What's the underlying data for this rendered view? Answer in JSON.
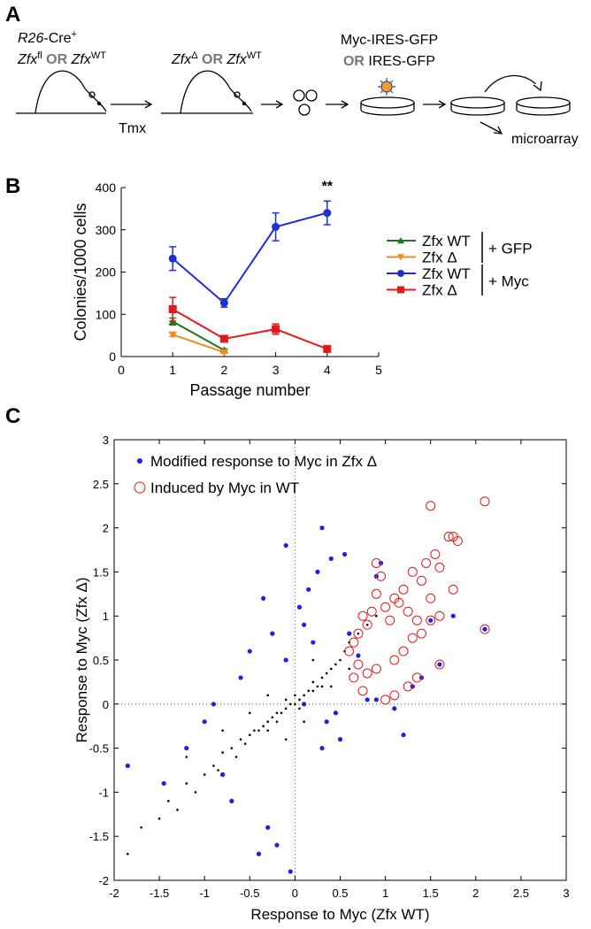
{
  "panel_labels": [
    "A",
    "B",
    "C"
  ],
  "diagram": {
    "start_line1": [
      "R26",
      "-Cre",
      "+"
    ],
    "start_line2": [
      "Zfx",
      "fl",
      " OR ",
      "Zfx",
      "WT"
    ],
    "deleted_line": [
      "Zfx",
      "Δ",
      " OR ",
      "Zfx",
      "WT"
    ],
    "treatment": "Tmx",
    "virus_line1": "Myc-IRES-GFP",
    "virus_line2": [
      "OR",
      " IRES-GFP"
    ],
    "readout": "microarray"
  },
  "chart_data": [
    {
      "type": "line",
      "xlabel": "Passage number",
      "ylabel": "Colonies/1000 cells",
      "xlim": [
        0,
        5
      ],
      "xticks": [
        0,
        1,
        2,
        3,
        4,
        5
      ],
      "ylim": [
        0,
        400
      ],
      "yticks": [
        0,
        100,
        200,
        300,
        400
      ],
      "annotation": "**",
      "legend_groups": [
        "+ GFP",
        "+ Myc"
      ],
      "series": [
        {
          "name": "Zfx WT",
          "color": "#1a7a1a",
          "marker": "triangle-up",
          "x": [
            1,
            2
          ],
          "values": [
            83,
            15
          ],
          "errors": [
            8,
            3
          ]
        },
        {
          "name": "Zfx Δ",
          "color": "#f08c1e",
          "marker": "triangle-down",
          "x": [
            1,
            2
          ],
          "values": [
            52,
            10
          ],
          "errors": [
            4,
            2
          ]
        },
        {
          "name": "Zfx WT",
          "color": "#1f2fd6",
          "marker": "circle",
          "x": [
            1,
            2,
            3,
            4
          ],
          "values": [
            232,
            127,
            307,
            340
          ],
          "errors": [
            28,
            10,
            33,
            28
          ]
        },
        {
          "name": "Zfx Δ",
          "color": "#e41a1a",
          "marker": "square",
          "x": [
            1,
            2,
            3,
            4
          ],
          "values": [
            112,
            42,
            65,
            18
          ],
          "errors": [
            28,
            5,
            12,
            3
          ]
        }
      ]
    },
    {
      "type": "scatter",
      "xlabel": "Response to Myc (Zfx WT)",
      "ylabel": "Response to Myc (Zfx Δ)",
      "xlim": [
        -2,
        3
      ],
      "xticks": [
        -2,
        -1.5,
        -1,
        -0.5,
        0,
        0.5,
        1,
        1.5,
        2,
        2.5,
        3
      ],
      "ylim": [
        -2,
        3
      ],
      "yticks": [
        -2,
        -1.5,
        -1,
        -0.5,
        0,
        0.5,
        1,
        1.5,
        2,
        2.5,
        3
      ],
      "zero_lines": true,
      "series": [
        {
          "color": "#000000",
          "marker": "point",
          "x": [
            -1.85,
            -1.7,
            -1.5,
            -1.4,
            -1.3,
            -1.2,
            -1.1,
            -1.0,
            -0.9,
            -0.85,
            -0.8,
            -0.7,
            -0.65,
            -0.6,
            -0.55,
            -0.5,
            -0.45,
            -0.4,
            -0.35,
            -0.3,
            -0.3,
            -0.25,
            -0.2,
            -0.2,
            -0.15,
            -0.1,
            -0.1,
            -0.05,
            0,
            0,
            0.05,
            0.05,
            0.1,
            0.1,
            0.15,
            0.2,
            0.2,
            0.25,
            0.3,
            0.3,
            0.35,
            0.4,
            0.45,
            0.5,
            0.55,
            0.6,
            0.7,
            0.8,
            0.9,
            -0.5,
            -0.8,
            -1.2,
            0.4,
            0.1,
            -0.3,
            0.6,
            -0.1,
            0.2
          ],
          "values": [
            -1.7,
            -1.4,
            -1.3,
            -1.1,
            -1.2,
            -0.9,
            -1.0,
            -0.8,
            -0.7,
            -0.75,
            -0.55,
            -0.5,
            -0.6,
            -0.4,
            -0.45,
            -0.35,
            -0.3,
            -0.3,
            -0.25,
            -0.2,
            -0.3,
            -0.15,
            -0.1,
            -0.2,
            -0.1,
            -0.05,
            0.05,
            0,
            0,
            0.1,
            0.05,
            -0.05,
            0.1,
            0,
            0.15,
            0.15,
            0.25,
            0.2,
            0.3,
            0.2,
            0.35,
            0.4,
            0.45,
            0.5,
            0.6,
            0.7,
            0.8,
            0.9,
            1.0,
            -0.1,
            -0.3,
            -0.6,
            0.2,
            -0.2,
            0.1,
            0.4,
            -0.4,
            0.5
          ]
        },
        {
          "name": "Modified response to Myc in Zfx Δ",
          "color": "#1f1fe6",
          "marker": "filled",
          "x": [
            0.3,
            -0.1,
            0.15,
            0.05,
            0.25,
            -0.35,
            0.55,
            0.4,
            0.1,
            -0.25,
            -0.5,
            -0.6,
            -0.9,
            -1.0,
            -1.2,
            -1.45,
            -1.85,
            -0.7,
            -0.3,
            -0.2,
            0.3,
            0.5,
            0.6,
            0.2,
            -0.1,
            0.35,
            0.45,
            0.7,
            0.8,
            0.9,
            1.1,
            1.2,
            1.3,
            1.5,
            1.6,
            1.75,
            2.1,
            1.4,
            0.95,
            0.9,
            -0.05,
            -0.4,
            -0.8,
            0.1
          ],
          "values": [
            2.0,
            1.8,
            1.3,
            1.1,
            1.5,
            1.2,
            1.7,
            1.65,
            0.9,
            0.8,
            0.6,
            0.3,
            0.0,
            -0.2,
            -0.5,
            -0.9,
            -0.7,
            -1.1,
            -1.4,
            -1.6,
            -0.5,
            -0.4,
            0.8,
            0.7,
            0.5,
            -0.2,
            -0.1,
            0.55,
            0.05,
            0.05,
            -0.05,
            -0.35,
            0.2,
            0.95,
            0.45,
            1.0,
            0.85,
            0.3,
            1.6,
            1.45,
            -1.9,
            -1.7,
            -0.8,
            0.0
          ]
        },
        {
          "name": "Induced by Myc in WT",
          "color": "#e41a1a",
          "marker": "open",
          "x": [
            1.5,
            2.1,
            1.75,
            1.7,
            1.8,
            1.55,
            1.45,
            1.6,
            1.3,
            1.4,
            1.2,
            1.1,
            1.0,
            0.95,
            0.9,
            0.85,
            0.8,
            0.75,
            0.7,
            0.65,
            0.6,
            1.05,
            1.15,
            1.25,
            1.35,
            1.5,
            1.6,
            1.75,
            1.3,
            1.4,
            1.2,
            1.1,
            0.9,
            0.8,
            0.7,
            0.65,
            0.75,
            1.0,
            1.1,
            1.25,
            1.35,
            1.6,
            0.9,
            1.5,
            2.1
          ],
          "values": [
            2.25,
            2.3,
            1.9,
            1.9,
            1.85,
            1.7,
            1.6,
            1.55,
            1.5,
            1.4,
            1.3,
            1.2,
            1.1,
            1.45,
            1.25,
            1.05,
            0.9,
            1.0,
            0.8,
            0.7,
            0.6,
            0.95,
            1.15,
            1.05,
            0.95,
            1.2,
            1.0,
            1.3,
            0.75,
            0.8,
            0.6,
            0.5,
            0.4,
            0.35,
            0.45,
            0.3,
            0.15,
            0.05,
            0.1,
            0.2,
            0.3,
            0.45,
            1.6,
            0.95,
            0.85
          ]
        }
      ]
    }
  ]
}
